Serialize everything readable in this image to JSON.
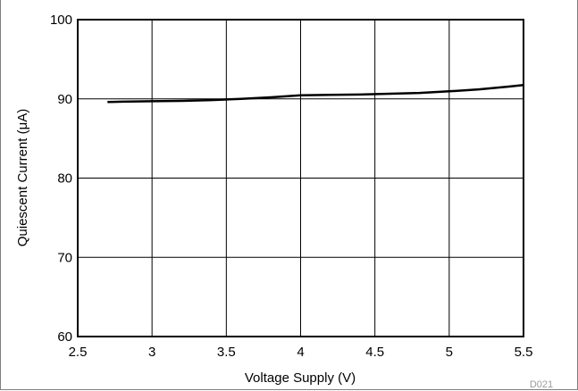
{
  "chart_data": {
    "type": "line",
    "xlabel": "Voltage Supply (V)",
    "ylabel": "Quiescent Current (μA)",
    "xlim": [
      2.5,
      5.5
    ],
    "ylim": [
      60,
      100
    ],
    "xticks": [
      2.5,
      3,
      3.5,
      4,
      4.5,
      5,
      5.5
    ],
    "xtick_labels": [
      "2.5",
      "3",
      "3.5",
      "4",
      "4.5",
      "5",
      "5.5"
    ],
    "yticks": [
      60,
      70,
      80,
      90,
      100
    ],
    "ytick_labels": [
      "60",
      "70",
      "80",
      "90",
      "100"
    ],
    "grid": true,
    "series": [
      {
        "color": "#000000",
        "x": [
          2.7,
          2.8,
          3.0,
          3.2,
          3.4,
          3.6,
          3.8,
          4.0,
          4.2,
          4.4,
          4.6,
          4.8,
          5.0,
          5.2,
          5.4,
          5.5
        ],
        "y": [
          89.6,
          89.65,
          89.7,
          89.75,
          89.85,
          90.0,
          90.2,
          90.45,
          90.5,
          90.55,
          90.65,
          90.75,
          90.95,
          91.2,
          91.55,
          91.75
        ]
      }
    ],
    "watermark": "D021"
  }
}
